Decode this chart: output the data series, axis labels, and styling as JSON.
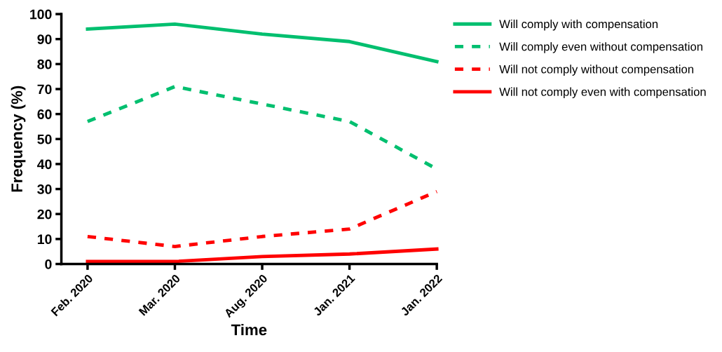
{
  "chart_data": {
    "type": "line",
    "xlabel": "Time",
    "ylabel": "Frequency (%)",
    "categories": [
      "Feb. 2020",
      "Mar. 2020",
      "Aug. 2020",
      "Jan. 2021",
      "Jan. 2022"
    ],
    "series": [
      {
        "name": "Will comply with compensation",
        "color": "#00bf6f",
        "line_style": "solid",
        "values": [
          94,
          96,
          92,
          89,
          81
        ]
      },
      {
        "name": "Will comply even without compensation",
        "color": "#00bf6f",
        "line_style": "dashed",
        "values": [
          57,
          71,
          64,
          57,
          38
        ]
      },
      {
        "name": "Will not comply without compensation",
        "color": "#ff0000",
        "line_style": "dashed",
        "values": [
          11,
          7,
          11,
          14,
          29
        ]
      },
      {
        "name": "Will not comply even with compensation",
        "color": "#ff0000",
        "line_style": "solid",
        "values": [
          1,
          1,
          3,
          4,
          6
        ]
      }
    ],
    "ylim": [
      0,
      100
    ],
    "yticks": [
      0,
      10,
      20,
      30,
      40,
      50,
      60,
      70,
      80,
      90,
      100
    ],
    "grid": false,
    "legend": "top right",
    "marker": "none"
  }
}
